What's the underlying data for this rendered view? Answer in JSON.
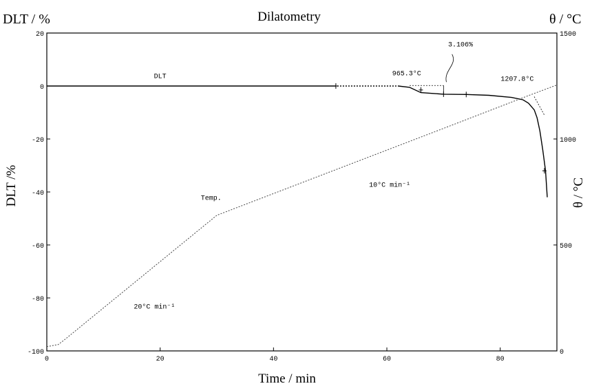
{
  "chart_data": {
    "type": "line",
    "title": "Dilatometry",
    "xlabel": "Time / min",
    "ylabel_left_top": "DLT / %",
    "ylabel_left_side": "DLT   /%",
    "ylabel_right_top": "θ / °C",
    "ylabel_right_side": "θ / °C",
    "xlim": [
      0,
      90
    ],
    "ylim_left": [
      -100,
      20
    ],
    "ylim_right": [
      0,
      1500
    ],
    "x_ticks": [
      "0",
      "20",
      "40",
      "60",
      "80"
    ],
    "y_left_ticks": [
      "20",
      "0",
      "-20",
      "-40",
      "-60",
      "-80",
      "-100"
    ],
    "y_right_ticks": [
      "1500",
      "1000",
      "500",
      "0"
    ],
    "grid": false,
    "series": [
      {
        "name": "DLT",
        "axis": "left",
        "x": [
          0,
          51,
          62,
          64,
          66,
          70,
          74,
          78,
          82,
          84,
          85,
          86,
          86.5,
          87,
          87.5,
          88,
          88.3
        ],
        "y": [
          0,
          0,
          0,
          -0.5,
          -2.5,
          -3.1,
          -3.2,
          -3.5,
          -4.3,
          -5.2,
          -6.5,
          -9,
          -12,
          -17,
          -24,
          -32,
          -42
        ]
      },
      {
        "name": "Temp.",
        "axis": "right",
        "x": [
          0,
          2,
          3,
          30,
          50,
          70,
          85,
          90
        ],
        "y": [
          20,
          30,
          50,
          640,
          845,
          1050,
          1205,
          1255
        ]
      }
    ],
    "annotations": [
      {
        "text": "DLT",
        "x": 20,
        "y": 3
      },
      {
        "text": "965.3°C",
        "x": 63.5,
        "y": 4
      },
      {
        "text": "3.106%",
        "x": 73,
        "y": 15
      },
      {
        "text": "1207.8°C",
        "x": 83,
        "y": 2
      },
      {
        "text": "Temp.",
        "x": 29,
        "y": -43
      },
      {
        "text": "10°C min⁻¹",
        "x": 60.5,
        "y": -38
      },
      {
        "text": "20°C min⁻¹",
        "x": 19,
        "y": -84
      }
    ]
  }
}
